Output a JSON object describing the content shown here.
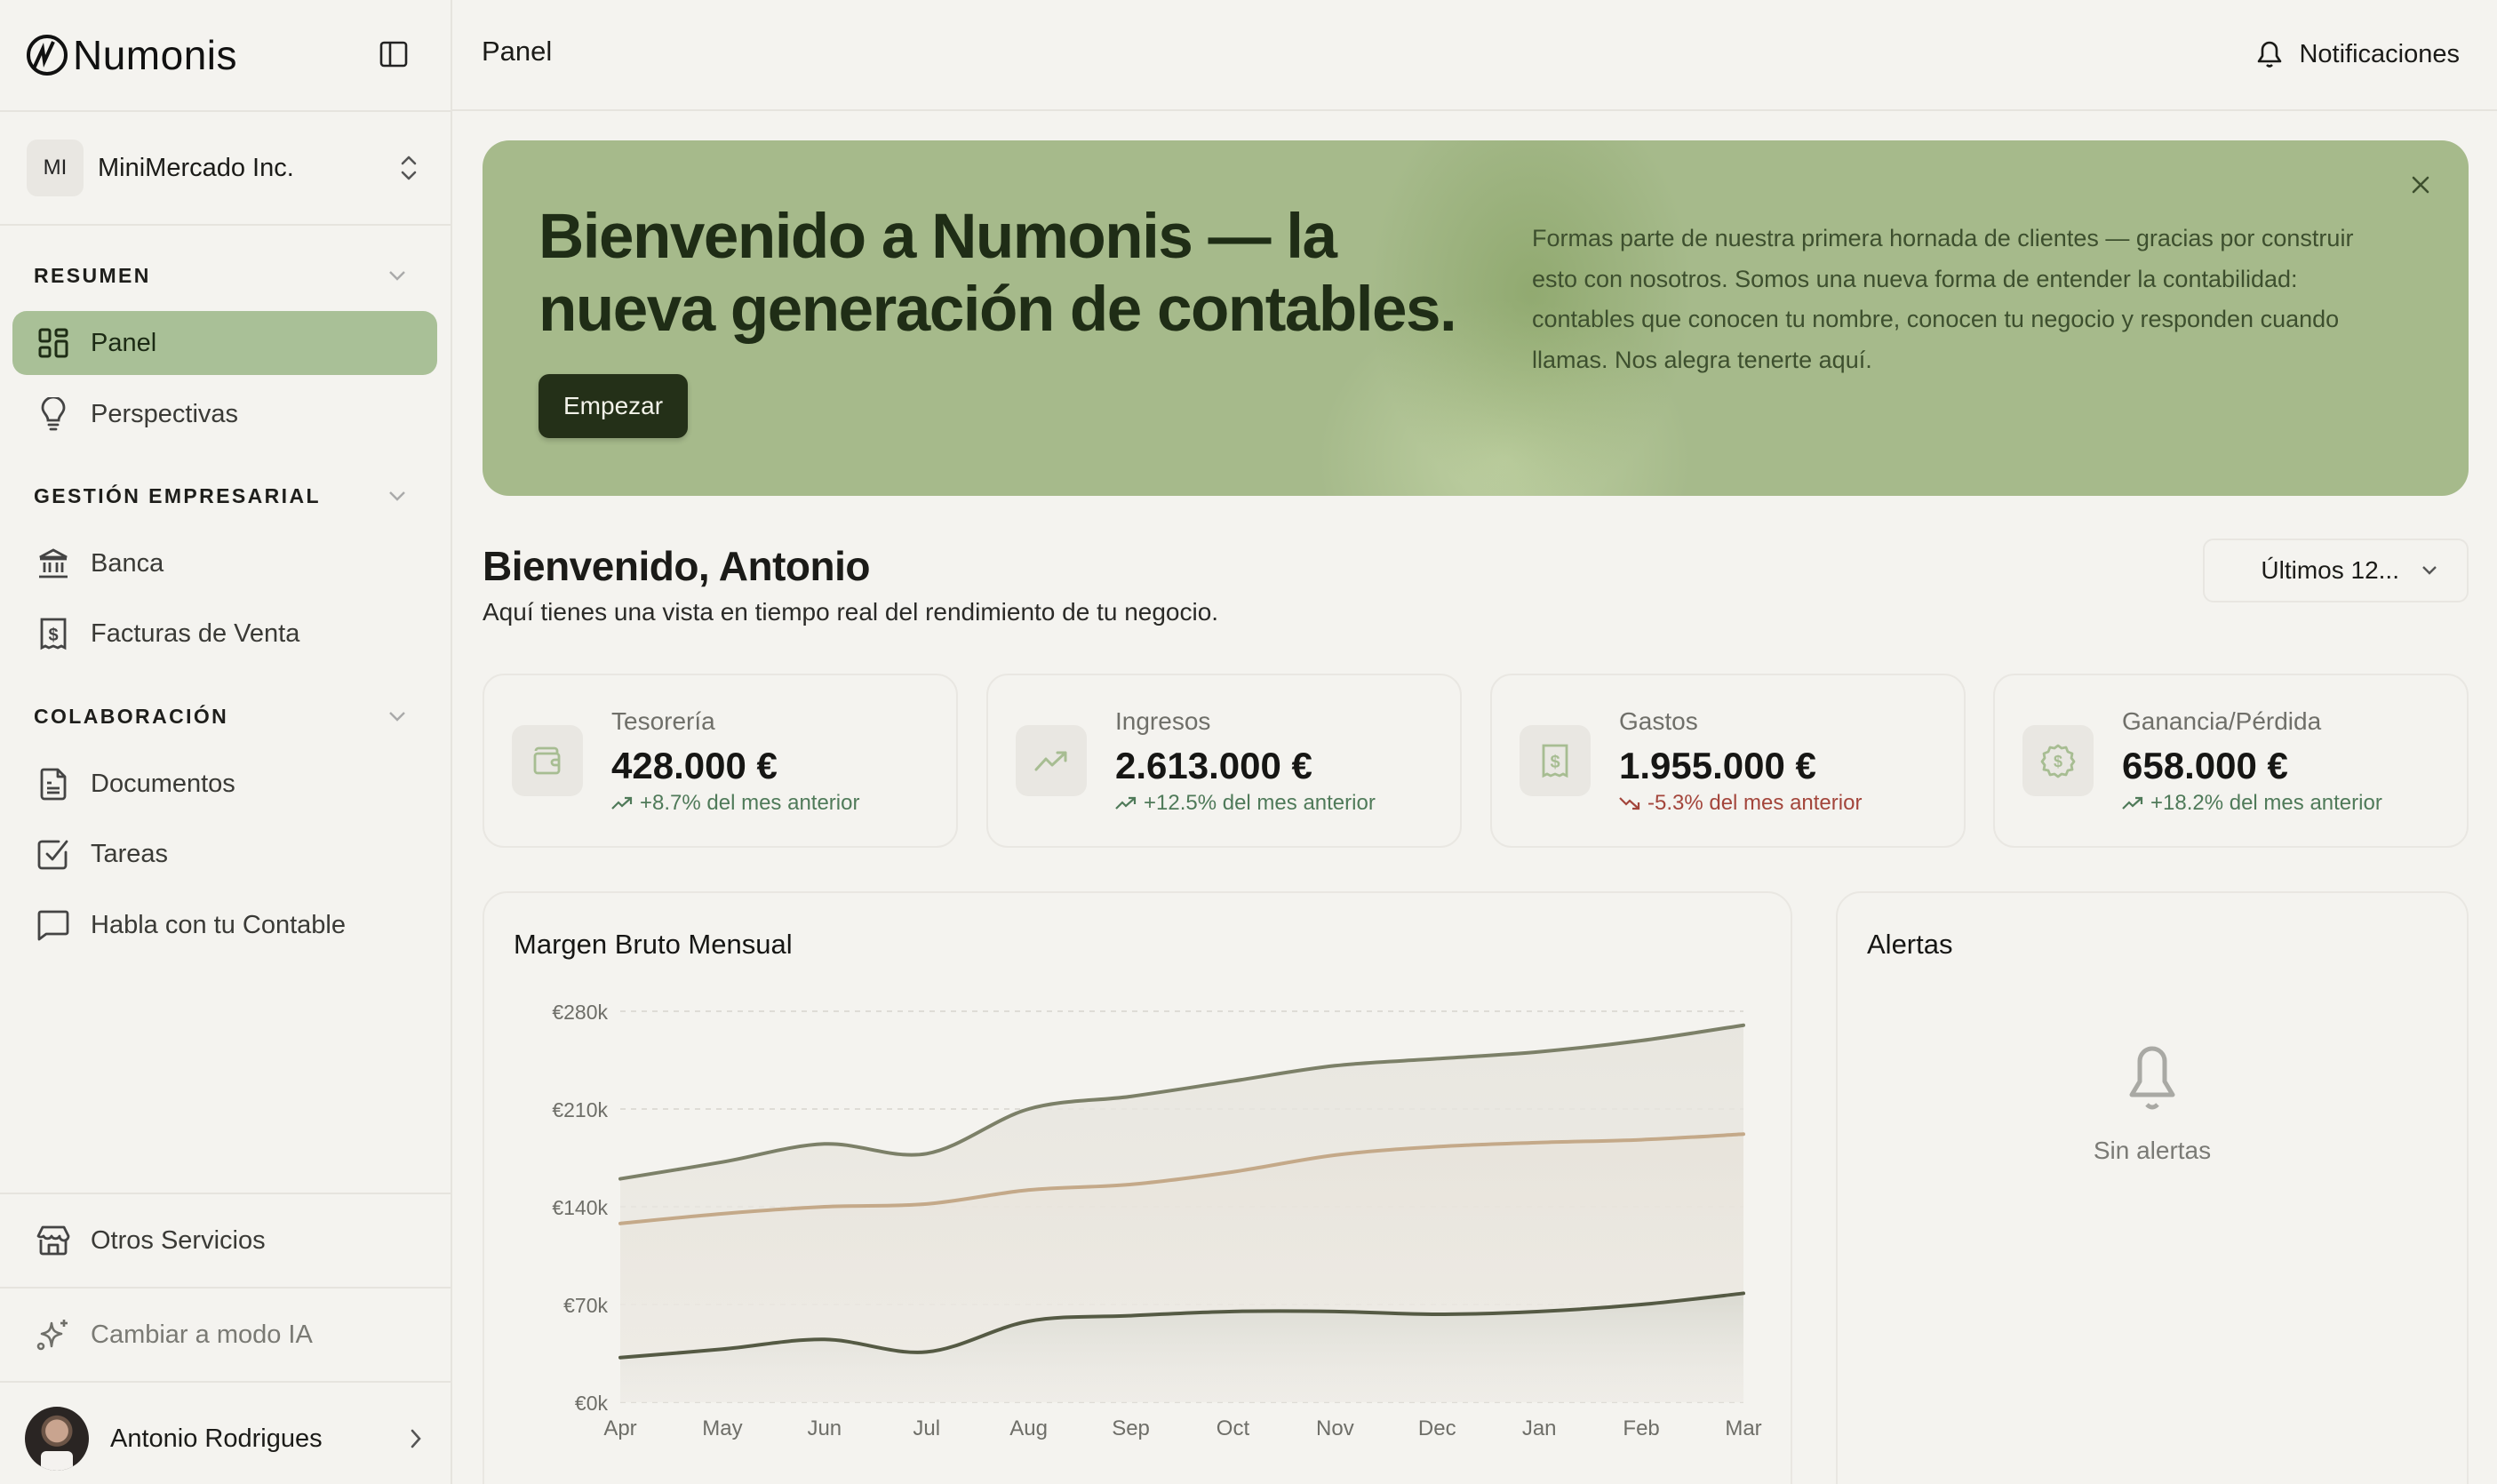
{
  "app": {
    "brand": "Numonis",
    "page_title": "Panel"
  },
  "sidebar": {
    "org": {
      "initials": "MI",
      "name": "MiniMercado Inc."
    },
    "sections": [
      {
        "title": "RESUMEN",
        "items": [
          {
            "label": "Panel",
            "icon": "dashboard-grid-icon",
            "active": true
          },
          {
            "label": "Perspectivas",
            "icon": "lightbulb-icon"
          }
        ]
      },
      {
        "title": "GESTIÓN EMPRESARIAL",
        "items": [
          {
            "label": "Banca",
            "icon": "bank-icon"
          },
          {
            "label": "Facturas de Venta",
            "icon": "receipt-dollar-icon"
          }
        ]
      },
      {
        "title": "COLABORACIÓN",
        "items": [
          {
            "label": "Documentos",
            "icon": "document-icon"
          },
          {
            "label": "Tareas",
            "icon": "checkbox-icon"
          },
          {
            "label": "Habla con tu Contable",
            "icon": "chat-bubble-icon"
          }
        ]
      }
    ],
    "footer": {
      "other_services": "Otros Servicios",
      "ai_mode": "Cambiar a modo IA",
      "user_name": "Antonio Rodrigues"
    }
  },
  "header": {
    "notifications_label": "Notificaciones"
  },
  "banner": {
    "title": "Bienvenido a Numonis — la nueva generación de contables.",
    "cta_label": "Empezar",
    "text": "Formas parte de nuestra primera hornada de clientes — gracias por construir esto con nosotros. Somos una nueva forma de entender la contabilidad: contables que conocen tu nombre, conocen tu negocio y responden cuando llamas. Nos alegra tenerte aquí."
  },
  "welcome": {
    "title": "Bienvenido, Antonio",
    "subtitle": "Aquí tienes una vista en tiempo real del rendimiento de tu negocio.",
    "period_selected": "Últimos 12..."
  },
  "stats": [
    {
      "label": "Tesorería",
      "value": "428.000 €",
      "change": "+8.7% del mes anterior",
      "trend": "up",
      "icon": "wallet-icon"
    },
    {
      "label": "Ingresos",
      "value": "2.613.000 €",
      "change": "+12.5% del mes anterior",
      "trend": "up",
      "icon": "trending-up-icon"
    },
    {
      "label": "Gastos",
      "value": "1.955.000 €",
      "change": "-5.3% del mes anterior",
      "trend": "down",
      "icon": "receipt-dollar-icon"
    },
    {
      "label": "Ganancia/Pérdida",
      "value": "658.000 €",
      "change": "+18.2% del mes anterior",
      "trend": "up",
      "icon": "badge-dollar-icon"
    }
  ],
  "colors": {
    "accent_green": "#a9c097",
    "banner_green": "#a6ba8b",
    "up": "#4f7a59",
    "down": "#a3453b",
    "series_top": "#7c8068",
    "series_mid": "#c4a989",
    "series_bottom": "#555a44"
  },
  "chart_data": {
    "type": "area",
    "title": "Margen Bruto Mensual",
    "categories": [
      "Apr",
      "May",
      "Jun",
      "Jul",
      "Aug",
      "Sep",
      "Oct",
      "Nov",
      "Dec",
      "Jan",
      "Feb",
      "Mar"
    ],
    "series": [
      {
        "name": "series-top",
        "color": "#7c8068",
        "values": [
          160,
          172,
          185,
          178,
          210,
          219,
          230,
          241,
          246,
          251,
          259,
          270
        ]
      },
      {
        "name": "series-mid",
        "color": "#c4a989",
        "values": [
          128,
          135,
          140,
          142,
          152,
          156,
          165,
          177,
          183,
          186,
          188,
          192
        ]
      },
      {
        "name": "series-bottom",
        "color": "#555a44",
        "values": [
          32,
          38,
          45,
          36,
          58,
          62,
          65,
          65,
          63,
          65,
          70,
          78
        ]
      }
    ],
    "y_ticks": [
      "€0k",
      "€70k",
      "€140k",
      "€210k",
      "€280k"
    ],
    "y_tick_values": [
      0,
      70,
      140,
      210,
      280
    ],
    "ylim": [
      0,
      280
    ],
    "xlabel": "",
    "ylabel": "",
    "grid": true,
    "legend": "none"
  },
  "alerts": {
    "title": "Alertas",
    "empty_text": "Sin alertas"
  }
}
